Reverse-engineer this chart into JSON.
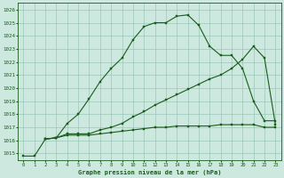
{
  "title": "Graphe pression niveau de la mer (hPa)",
  "bg_color": "#cce8df",
  "grid_color": "#8fbfb0",
  "line_color": "#1a5c1a",
  "xlim": [
    -0.5,
    23.5
  ],
  "ylim": [
    1014.5,
    1026.5
  ],
  "yticks": [
    1015,
    1016,
    1017,
    1018,
    1019,
    1020,
    1021,
    1022,
    1023,
    1024,
    1025,
    1026
  ],
  "xticks": [
    0,
    1,
    2,
    3,
    4,
    5,
    6,
    7,
    8,
    9,
    10,
    11,
    12,
    13,
    14,
    15,
    16,
    17,
    18,
    19,
    20,
    21,
    22,
    23
  ],
  "line1_x": [
    0,
    1,
    2,
    3,
    4,
    5,
    6,
    7,
    8,
    9,
    10,
    11,
    12,
    13,
    14,
    15,
    16,
    17,
    18,
    19,
    20,
    21,
    22,
    23
  ],
  "line1_y": [
    1014.8,
    1014.8,
    1016.1,
    1016.2,
    1017.3,
    1018.0,
    1019.2,
    1020.5,
    1021.5,
    1022.3,
    1023.7,
    1024.7,
    1025.0,
    1025.0,
    1025.5,
    1025.6,
    1024.8,
    1023.2,
    1022.5,
    1022.5,
    1021.5,
    1019.0,
    1017.5,
    1017.5
  ],
  "line2_x": [
    2,
    3,
    4,
    5,
    6,
    7,
    8,
    9,
    10,
    11,
    12,
    13,
    14,
    15,
    16,
    17,
    18,
    19,
    20,
    21,
    22,
    23
  ],
  "line2_y": [
    1016.1,
    1016.2,
    1016.5,
    1016.5,
    1016.5,
    1016.8,
    1017.0,
    1017.3,
    1017.8,
    1018.2,
    1018.7,
    1019.1,
    1019.5,
    1019.9,
    1020.3,
    1020.7,
    1021.0,
    1021.5,
    1022.2,
    1023.2,
    1022.3,
    1017.2
  ],
  "line3_x": [
    2,
    3,
    4,
    5,
    6,
    7,
    8,
    9,
    10,
    11,
    12,
    13,
    14,
    15,
    16,
    17,
    18,
    19,
    20,
    21,
    22,
    23
  ],
  "line3_y": [
    1016.1,
    1016.2,
    1016.4,
    1016.4,
    1016.4,
    1016.5,
    1016.6,
    1016.7,
    1016.8,
    1016.9,
    1017.0,
    1017.0,
    1017.1,
    1017.1,
    1017.1,
    1017.1,
    1017.2,
    1017.2,
    1017.2,
    1017.2,
    1017.0,
    1017.0
  ]
}
